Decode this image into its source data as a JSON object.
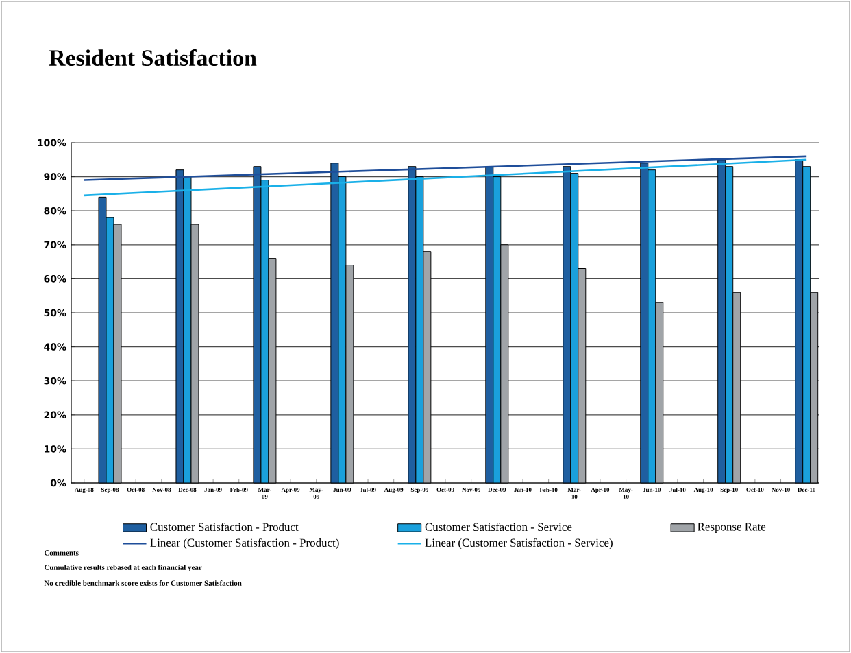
{
  "chart_data": {
    "type": "bar",
    "title": "Resident Satisfaction",
    "categories": [
      "Aug-08",
      "Sep-08",
      "Oct-08",
      "Nov-08",
      "Dec-08",
      "Jan-09",
      "Feb-09",
      "Mar-09",
      "Apr-09",
      "May-09",
      "Jun-09",
      "Jul-09",
      "Aug-09",
      "Sep-09",
      "Oct-09",
      "Nov-09",
      "Dec-09",
      "Jan-10",
      "Feb-10",
      "Mar-10",
      "Apr-10",
      "May-10",
      "Jun-10",
      "Jul-10",
      "Aug-10",
      "Sep-10",
      "Oct-10",
      "Nov-10",
      "Dec-10"
    ],
    "series": [
      {
        "name": "Customer Satisfaction - Product",
        "color": "#1f5fa0",
        "values": [
          null,
          84,
          null,
          null,
          92,
          null,
          null,
          93,
          null,
          null,
          94,
          null,
          null,
          93,
          null,
          null,
          93,
          null,
          null,
          93,
          null,
          null,
          94,
          null,
          null,
          95,
          null,
          null,
          95
        ]
      },
      {
        "name": "Customer Satisfaction - Service",
        "color": "#1aa0dc",
        "values": [
          null,
          78,
          null,
          null,
          90,
          null,
          null,
          89,
          null,
          null,
          90,
          null,
          null,
          90,
          null,
          null,
          90,
          null,
          null,
          91,
          null,
          null,
          92,
          null,
          null,
          93,
          null,
          null,
          93
        ]
      },
      {
        "name": "Response Rate",
        "color": "#a0a4a8",
        "values": [
          null,
          76,
          null,
          null,
          76,
          null,
          null,
          66,
          null,
          null,
          64,
          null,
          null,
          68,
          null,
          null,
          70,
          null,
          null,
          63,
          null,
          null,
          53,
          null,
          null,
          56,
          null,
          null,
          56
        ]
      },
      {
        "name": "Linear (Customer Satisfaction - Product)",
        "type": "line",
        "color": "#1f4e9a",
        "x": [
          "Aug-08",
          "Dec-10"
        ],
        "values": [
          89,
          96
        ]
      },
      {
        "name": "Linear (Customer Satisfaction - Service)",
        "type": "line",
        "color": "#1ab0e8",
        "x": [
          "Aug-08",
          "Dec-10"
        ],
        "values": [
          84.5,
          95
        ]
      }
    ],
    "ylim": [
      0,
      100
    ],
    "yticks": [
      {
        "value": 0,
        "label": "0%"
      },
      {
        "value": 10,
        "label": "10%"
      },
      {
        "value": 20,
        "label": "20%"
      },
      {
        "value": 30,
        "label": "30%"
      },
      {
        "value": 40,
        "label": "40%"
      },
      {
        "value": 50,
        "label": "50%"
      },
      {
        "value": 60,
        "label": "60%"
      },
      {
        "value": 70,
        "label": "70%"
      },
      {
        "value": 80,
        "label": "80%"
      },
      {
        "value": 90,
        "label": "90%"
      },
      {
        "value": 100,
        "label": "100%"
      }
    ],
    "grid": "y",
    "legend": "bottom",
    "annotations": [
      "Comments",
      "Cumulative results rebased at each financial year",
      "No credible benchmark score exists for Customer Satisfaction"
    ]
  }
}
